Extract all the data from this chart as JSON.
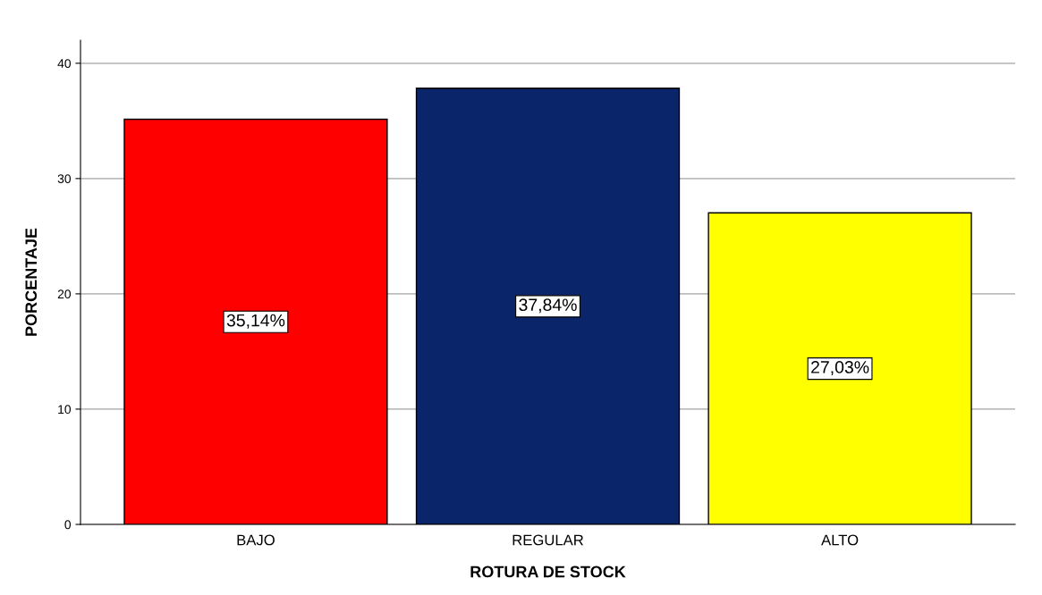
{
  "chart_data": {
    "type": "bar",
    "xlabel": "ROTURA DE STOCK",
    "ylabel": "PORCENTAJE",
    "categories": [
      "BAJO",
      "REGULAR",
      "ALTO"
    ],
    "values": [
      35.14,
      37.84,
      27.03
    ],
    "colors": [
      "#ff0000",
      "#0a2569",
      "#ffff00"
    ],
    "value_labels": [
      "35,14%",
      "37,84%",
      "27,03%"
    ],
    "ylim": [
      0,
      42
    ],
    "yticks": [
      0,
      10,
      20,
      30,
      40
    ],
    "grid": "y"
  }
}
